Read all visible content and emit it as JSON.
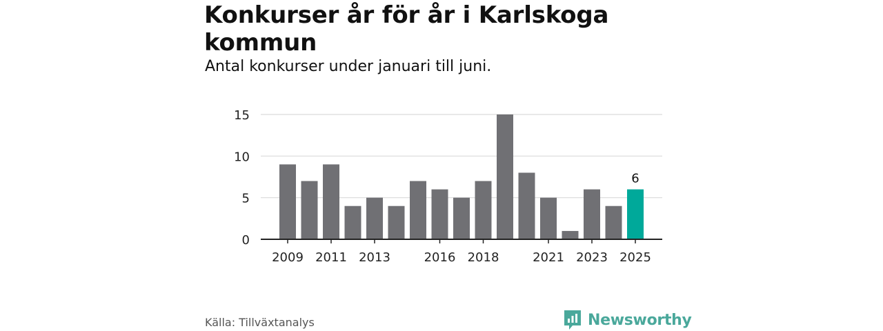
{
  "header": {
    "title": "Konkurser år för år i Karlskoga kommun",
    "subtitle": "Antal konkurser under januari till juni."
  },
  "footer": {
    "source": "Källa: Tillväxtanalys",
    "brand": "Newsworthy"
  },
  "colors": {
    "bar": "#707074",
    "highlight": "#00a99a",
    "grid": "#d9d9d9",
    "brand": "#4aa89b"
  },
  "chart_data": {
    "type": "bar",
    "categories": [
      "2009",
      "2010",
      "2011",
      "2012",
      "2013",
      "2014",
      "2015",
      "2016",
      "2017",
      "2018",
      "2019",
      "2020",
      "2021",
      "2022",
      "2023",
      "2024",
      "2025"
    ],
    "values": [
      9,
      7,
      9,
      4,
      5,
      4,
      7,
      6,
      5,
      7,
      15,
      8,
      5,
      1,
      6,
      4,
      6
    ],
    "x_tick_labels": [
      "2009",
      "2011",
      "2013",
      "2016",
      "2018",
      "2021",
      "2023",
      "2025"
    ],
    "y_ticks": [
      0,
      5,
      10,
      15
    ],
    "ylim": [
      0,
      15
    ],
    "highlight_category": "2025",
    "data_labels": [
      {
        "category": "2025",
        "text": "6"
      }
    ],
    "title": "Konkurser år för år i Karlskoga kommun",
    "subtitle": "Antal konkurser under januari till juni.",
    "grid": true,
    "legend": "none"
  }
}
